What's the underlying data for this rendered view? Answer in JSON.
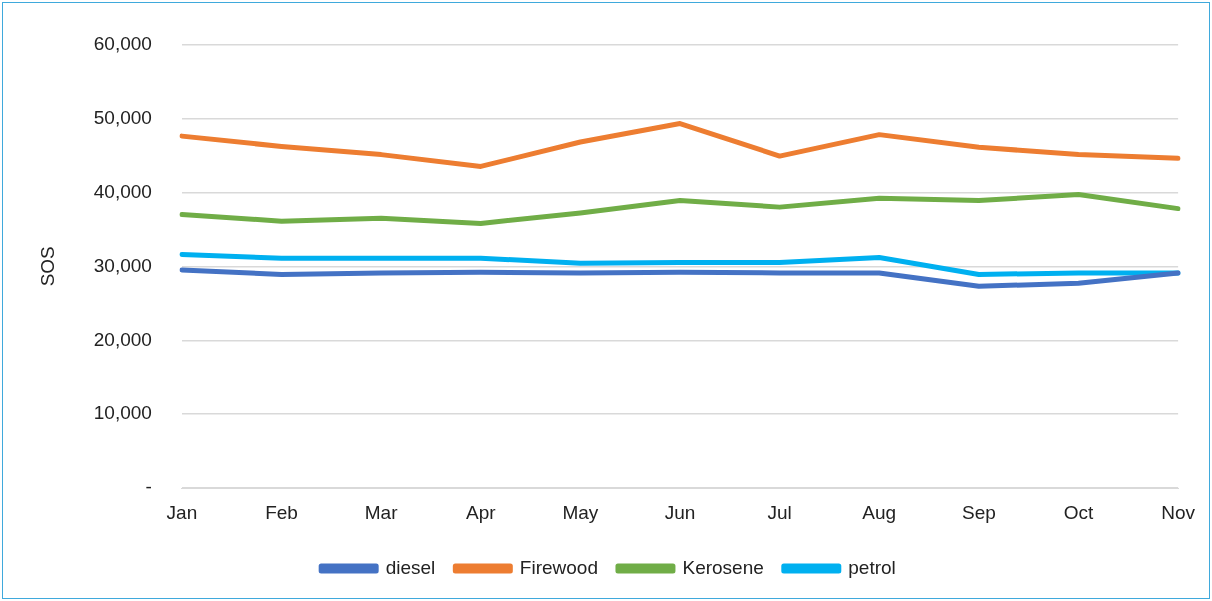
{
  "chart_data": {
    "type": "line",
    "ylabel": "SOS",
    "categories": [
      "Jan",
      "Feb",
      "Mar",
      "Apr",
      "May",
      "Jun",
      "Jul",
      "Aug",
      "Sep",
      "Oct",
      "Nov"
    ],
    "series": [
      {
        "name": "diesel",
        "color": "#4472c4",
        "values": [
          29500,
          28900,
          29100,
          29200,
          29100,
          29200,
          29100,
          29100,
          27300,
          27700,
          29100
        ]
      },
      {
        "name": "Firewood",
        "color": "#ed7d31",
        "values": [
          47600,
          46200,
          45100,
          43500,
          46800,
          49300,
          44900,
          47800,
          46100,
          45100,
          44600
        ]
      },
      {
        "name": "Kerosene",
        "color": "#70ad47",
        "values": [
          37000,
          36100,
          36500,
          35800,
          37200,
          38900,
          38000,
          39200,
          38900,
          39700,
          37800
        ]
      },
      {
        "name": "petrol",
        "color": "#00b0f0",
        "values": [
          31600,
          31100,
          31100,
          31100,
          30400,
          30500,
          30500,
          31200,
          28900,
          29100,
          29100
        ]
      }
    ],
    "ylim": [
      0,
      60000
    ],
    "yticks": [
      {
        "value": 0,
        "label": "-"
      },
      {
        "value": 10000,
        "label": "10,000"
      },
      {
        "value": 20000,
        "label": "20,000"
      },
      {
        "value": 30000,
        "label": "30,000"
      },
      {
        "value": 40000,
        "label": "40,000"
      },
      {
        "value": 50000,
        "label": "50,000"
      },
      {
        "value": 60000,
        "label": "60,000"
      }
    ],
    "grid": "y",
    "legend": "bottom",
    "marker": "none",
    "line_style": "solid"
  }
}
